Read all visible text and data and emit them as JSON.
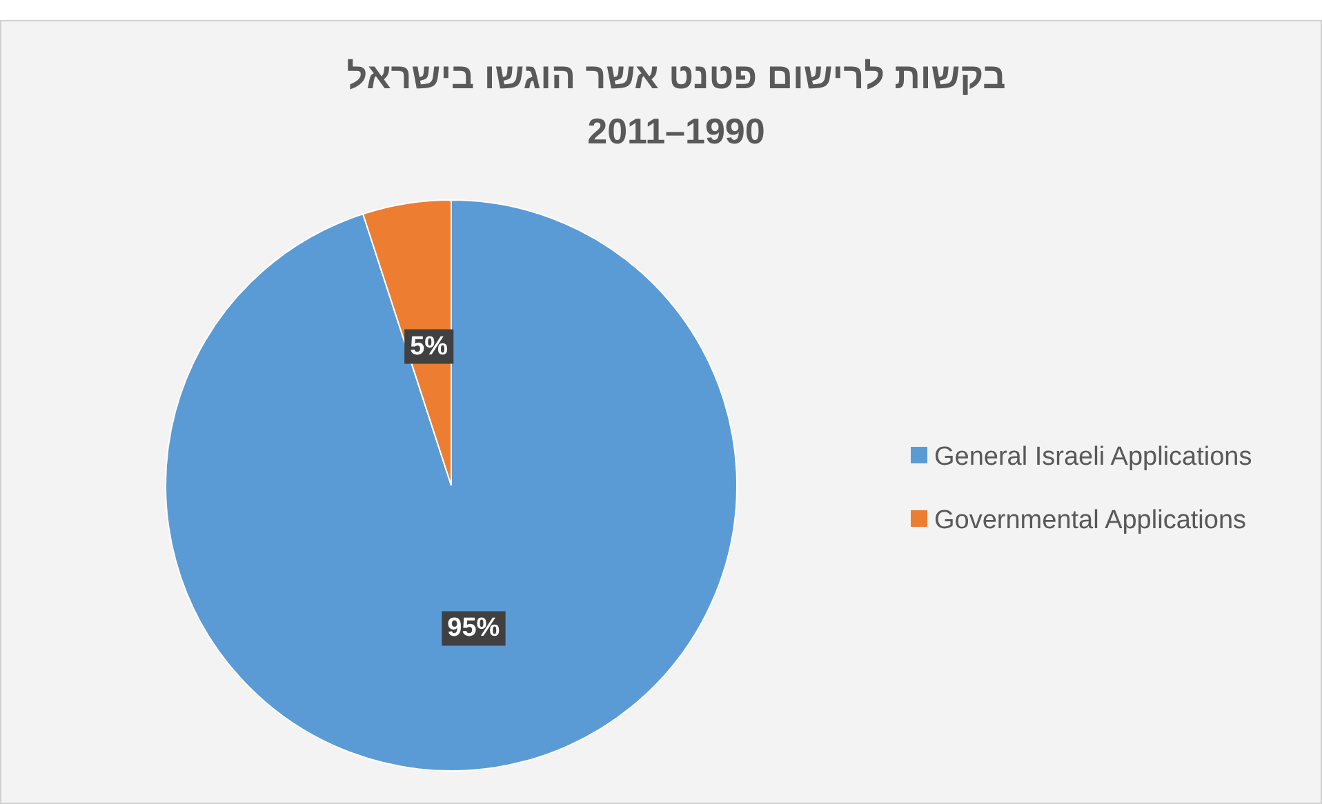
{
  "chart_data": {
    "type": "pie",
    "title": "בקשות לרישום פטנט אשר הוגשו בישראל",
    "subtitle": "2011–1990",
    "categories": [
      "General Israeli Applications",
      "Governmental Applications"
    ],
    "values": [
      95,
      5
    ],
    "colors": [
      "#5b9bd5",
      "#ed7d31"
    ],
    "value_labels": [
      "95%",
      "5%"
    ],
    "legend": "right"
  }
}
